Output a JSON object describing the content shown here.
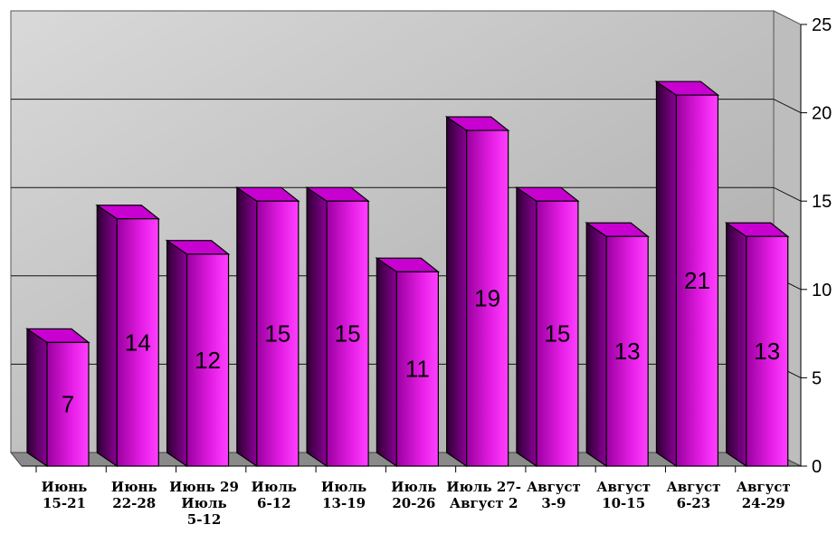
{
  "chart_data": {
    "type": "bar",
    "title": "",
    "xlabel": "",
    "ylabel": "",
    "ylim": [
      0,
      25
    ],
    "yticks": [
      0,
      5,
      10,
      15,
      20,
      25
    ],
    "grid": true,
    "legend": "none",
    "categories": [
      [
        "Июнь",
        "15-21"
      ],
      [
        "Июнь",
        "22-28"
      ],
      [
        "Июнь 29",
        "Июль",
        "5-12"
      ],
      [
        "Июль",
        "6-12"
      ],
      [
        "Июль",
        "13-19"
      ],
      [
        "Июль",
        "20-26"
      ],
      [
        "Июль 27-",
        "Август 2"
      ],
      [
        "Август",
        "3-9"
      ],
      [
        "Август",
        "10-15"
      ],
      [
        "Август",
        "6-23"
      ],
      [
        "Август",
        "24-29"
      ]
    ],
    "values": [
      7,
      14,
      12,
      15,
      15,
      11,
      19,
      15,
      13,
      21,
      13
    ],
    "data_labels": [
      "7",
      "14",
      "12",
      "15",
      "15",
      "11",
      "19",
      "15",
      "13",
      "21",
      "13"
    ],
    "colors": {
      "bar_front_light": "#ff33ff",
      "bar_front_dark": "#b000b8",
      "bar_side": "#4a0050",
      "bar_top": "#c000c8",
      "wall": "#c8c8c8",
      "floor": "#8a8a8a"
    }
  }
}
